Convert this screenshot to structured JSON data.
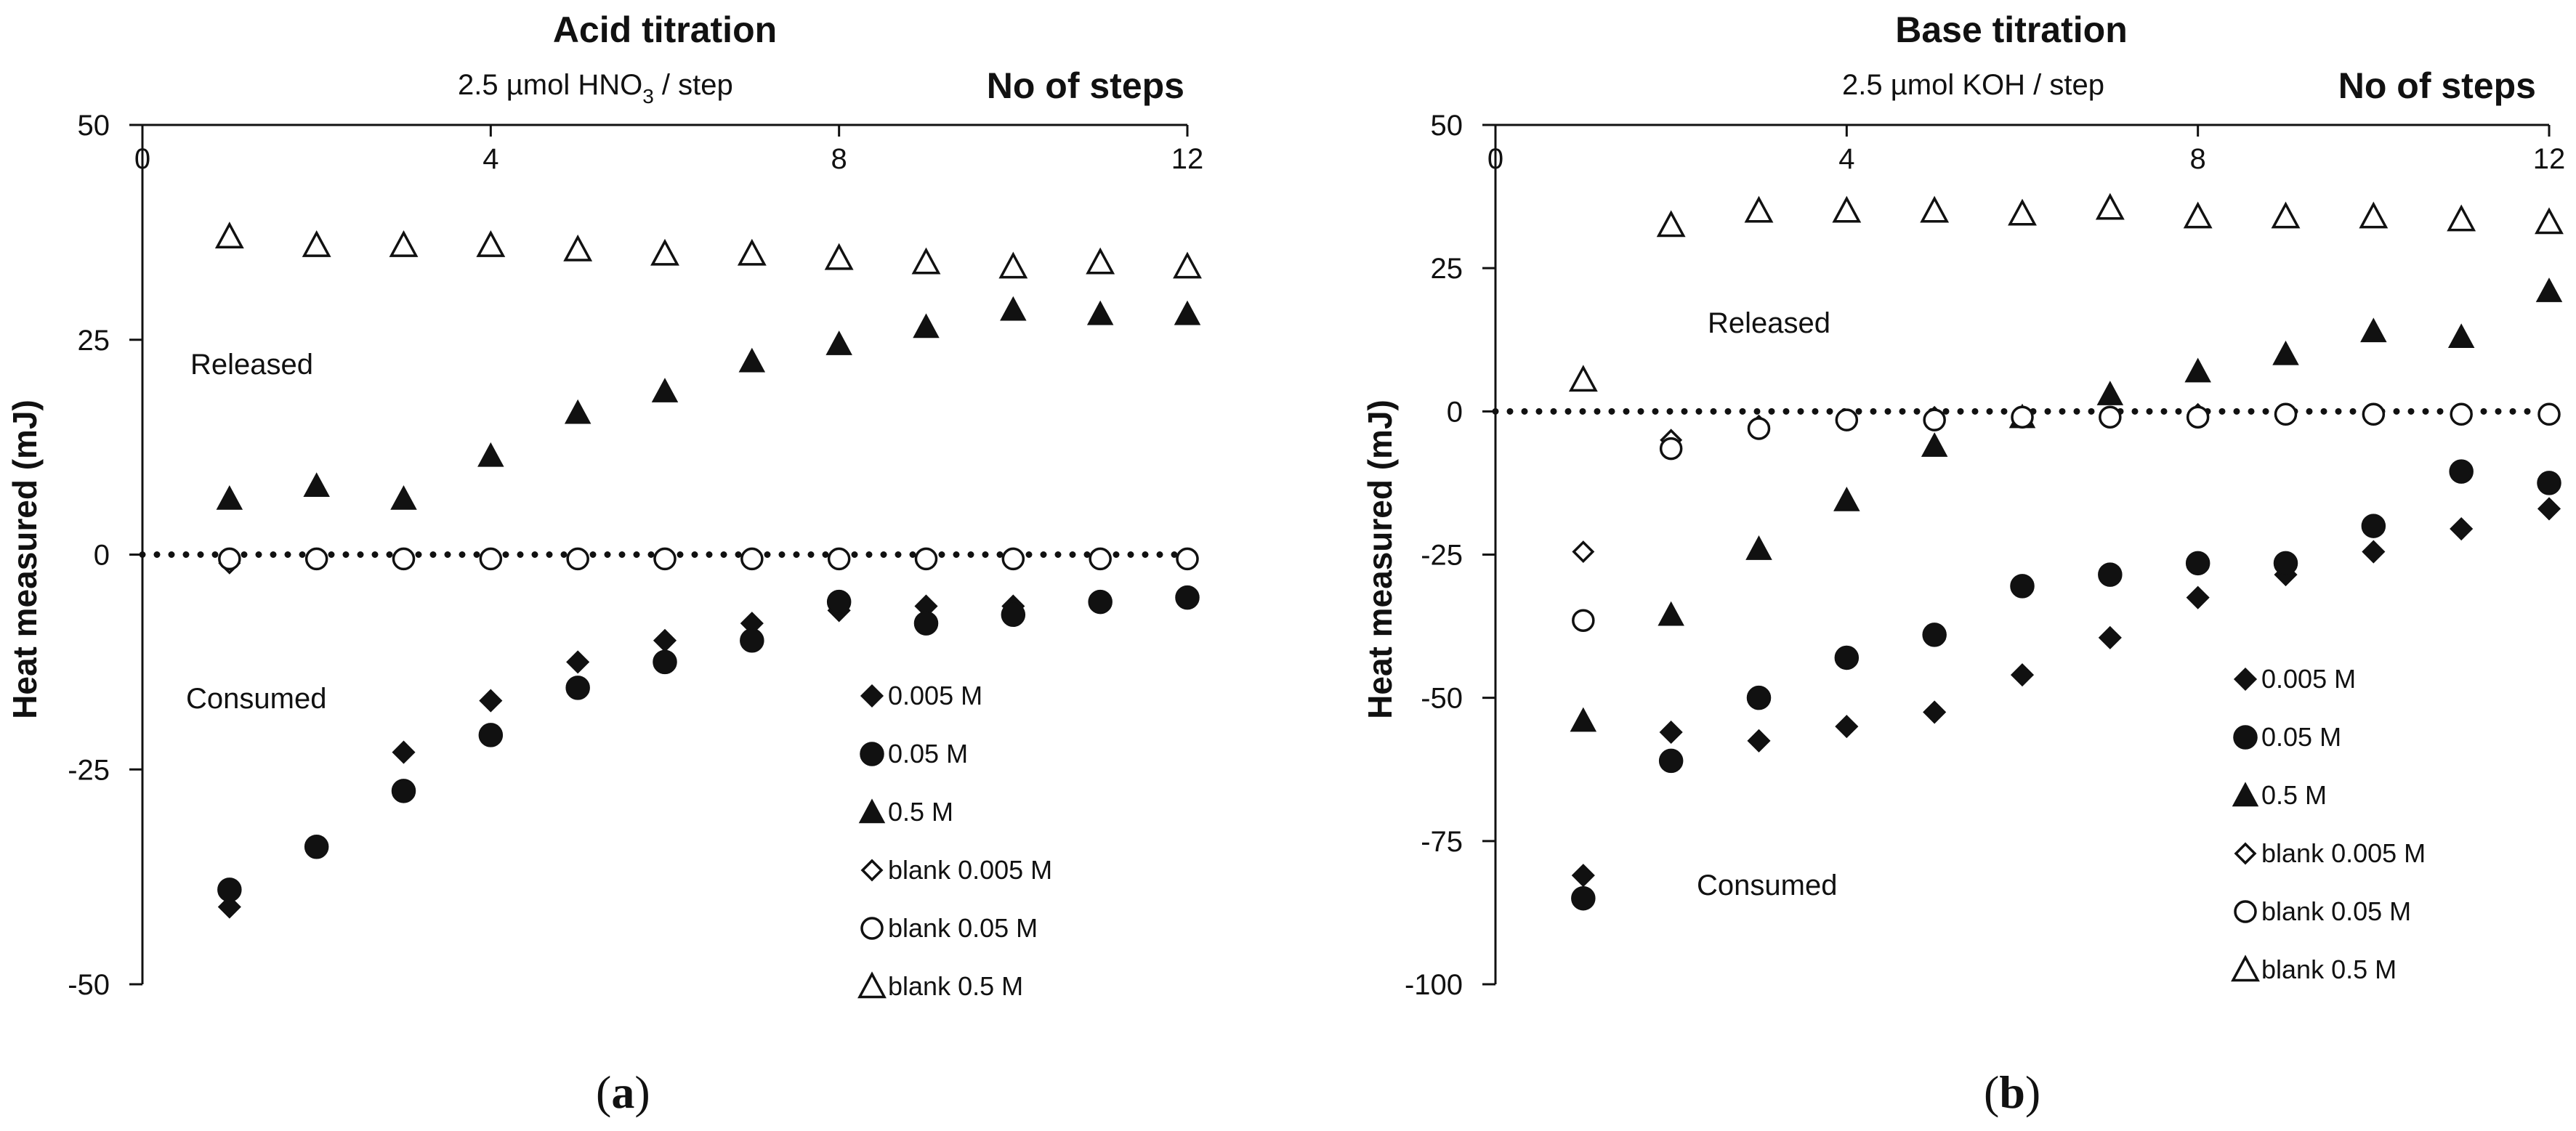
{
  "figure": {
    "ylabel": "Heat measured (mJ)",
    "steps_label": "No of steps"
  },
  "chart_data": [
    {
      "type": "scatter",
      "panel_label": "a",
      "title": "Acid titration",
      "subtitle": {
        "prefix": "2.5 µmol   HNO",
        "subscript": "3",
        "suffix": "  / step"
      },
      "xlabel": "No of steps",
      "ylabel": "Heat measured (mJ)",
      "xlim": [
        0,
        12
      ],
      "ylim": [
        -50,
        50
      ],
      "xticks": [
        "0",
        "4",
        "8",
        "12"
      ],
      "yticks": [
        "-50",
        "-25",
        "0",
        "25",
        "50"
      ],
      "annotations": [
        "Released",
        "Consumed"
      ],
      "x": [
        1,
        2,
        3,
        4,
        5,
        6,
        7,
        8,
        9,
        10,
        11,
        12
      ],
      "series": [
        {
          "name": "0.005 M",
          "marker": "diamond-filled",
          "values": [
            -41,
            -34,
            -23,
            -17,
            -12.5,
            -10,
            -8,
            -6.5,
            -6,
            -6,
            -5.5,
            -5
          ]
        },
        {
          "name": "0.05 M",
          "marker": "circle-filled",
          "values": [
            -39,
            -34,
            -27.5,
            -21,
            -15.5,
            -12.5,
            -10,
            -5.5,
            -8,
            -7,
            -5.5,
            -5
          ]
        },
        {
          "name": "0.5 M",
          "marker": "triangle-filled",
          "values": [
            6.5,
            8,
            6.5,
            11.5,
            16.5,
            19,
            22.5,
            24.5,
            26.5,
            28.5,
            28,
            28
          ]
        },
        {
          "name": "blank 0.005 M",
          "marker": "diamond-open",
          "values": [
            -1,
            -0.5,
            -0.5,
            -0.5,
            -0.5,
            -0.5,
            -0.5,
            -0.5,
            -0.5,
            -0.5,
            -0.5,
            -0.5
          ]
        },
        {
          "name": "blank 0.05 M",
          "marker": "circle-open",
          "values": [
            -0.5,
            -0.5,
            -0.5,
            -0.5,
            -0.5,
            -0.5,
            -0.5,
            -0.5,
            -0.5,
            -0.5,
            -0.5,
            -0.5
          ]
        },
        {
          "name": "blank 0.5 M",
          "marker": "triangle-open",
          "values": [
            37,
            36,
            36,
            36,
            35.5,
            35,
            35,
            34.5,
            34,
            33.5,
            34,
            33.5
          ]
        }
      ]
    },
    {
      "type": "scatter",
      "panel_label": "b",
      "title": "Base titration",
      "subtitle": {
        "prefix": "2.5 µmol   KOH  / step",
        "subscript": "",
        "suffix": ""
      },
      "xlabel": "No of steps",
      "ylabel": "Heat measured (mJ)",
      "xlim": [
        0,
        12
      ],
      "ylim": [
        -100,
        50
      ],
      "xticks": [
        "0",
        "4",
        "8",
        "12"
      ],
      "yticks": [
        "-100",
        "-75",
        "-50",
        "-25",
        "0",
        "25",
        "50"
      ],
      "annotations": [
        "Released",
        "Consumed"
      ],
      "x": [
        1,
        2,
        3,
        4,
        5,
        6,
        7,
        8,
        9,
        10,
        11,
        12
      ],
      "series": [
        {
          "name": "0.005 M",
          "marker": "diamond-filled",
          "values": [
            -81,
            -56,
            -57.5,
            -55,
            -52.5,
            -46,
            -39.5,
            -32.5,
            -28.5,
            -24.5,
            -20.5,
            -17
          ]
        },
        {
          "name": "0.05 M",
          "marker": "circle-filled",
          "values": [
            -85,
            -61,
            -50,
            -43,
            -39,
            -30.5,
            -28.5,
            -26.5,
            -26.5,
            -20,
            -10.5,
            -12.5
          ]
        },
        {
          "name": "0.5 M",
          "marker": "triangle-filled",
          "values": [
            -54,
            -35.5,
            -24,
            -15.5,
            -6,
            -1,
            3,
            7,
            10,
            14,
            13,
            21
          ]
        },
        {
          "name": "blank 0.005 M",
          "marker": "diamond-open",
          "values": [
            -24.5,
            -5,
            -2.5,
            -1.5,
            -1,
            -1,
            -1,
            -0.5,
            -0.5,
            -0.5,
            -0.5,
            -0.5
          ]
        },
        {
          "name": "blank 0.05 M",
          "marker": "circle-open",
          "values": [
            -36.5,
            -6.5,
            -3,
            -1.5,
            -1.5,
            -1,
            -1,
            -1,
            -0.5,
            -0.5,
            -0.5,
            -0.5
          ]
        },
        {
          "name": "blank 0.5 M",
          "marker": "triangle-open",
          "values": [
            5.5,
            32.5,
            35,
            35,
            35,
            34.5,
            35.5,
            34,
            34,
            34,
            33.5,
            33
          ]
        }
      ]
    }
  ]
}
